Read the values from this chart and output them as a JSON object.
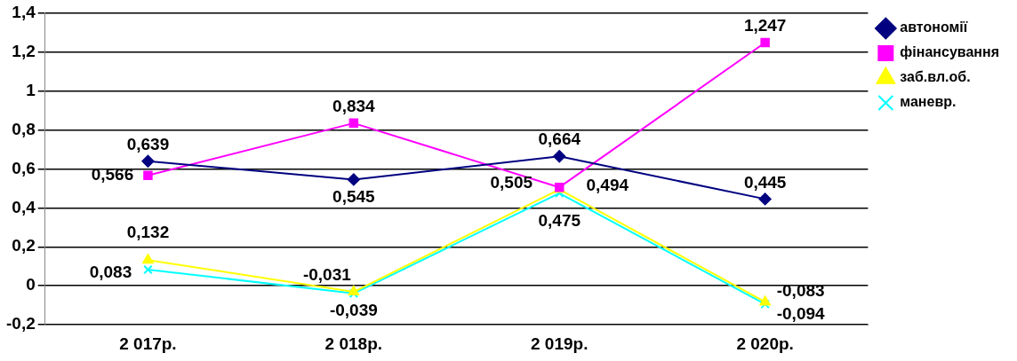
{
  "chart_data": {
    "type": "line",
    "categories": [
      "2 017р.",
      "2 018р.",
      "2 019р.",
      "2 020р."
    ],
    "series": [
      {
        "name": "автономії",
        "color": "#000080",
        "marker": "diamond",
        "values": [
          0.639,
          0.545,
          0.664,
          0.445
        ],
        "value_labels": [
          "0,639",
          "0,545",
          "0,664",
          "0,445"
        ]
      },
      {
        "name": "фінансування",
        "color": "#ff00ff",
        "marker": "square",
        "values": [
          0.566,
          0.834,
          0.505,
          1.247
        ],
        "value_labels": [
          "0,566",
          "0,834",
          "0,505",
          "1,247"
        ]
      },
      {
        "name": "заб.вл.об.",
        "color": "#ffff00",
        "marker": "triangle",
        "values": [
          0.132,
          -0.031,
          0.494,
          -0.083
        ],
        "value_labels": [
          "0,132",
          "-0,031",
          "0,494",
          "-0,083"
        ]
      },
      {
        "name": "маневр.",
        "color": "#00ffff",
        "marker": "cross",
        "values": [
          0.083,
          -0.039,
          0.475,
          -0.094
        ],
        "value_labels": [
          "0,083",
          "-0,039",
          "0,475",
          "-0,094"
        ]
      }
    ],
    "ylim": [
      -0.2,
      1.4
    ],
    "yticks": [
      {
        "value": -0.2,
        "label": "-0,2"
      },
      0,
      {
        "value": 0.2,
        "label": "0,2"
      },
      {
        "value": 0.4,
        "label": "0,4"
      },
      {
        "value": 0.6,
        "label": "0,6"
      },
      {
        "value": 0.8,
        "label": "0,8"
      },
      1,
      {
        "value": 1.2,
        "label": "1,2"
      },
      {
        "value": 1.4,
        "label": "1,4"
      }
    ],
    "grid": "y",
    "legend": "right",
    "line_style": "solid"
  }
}
